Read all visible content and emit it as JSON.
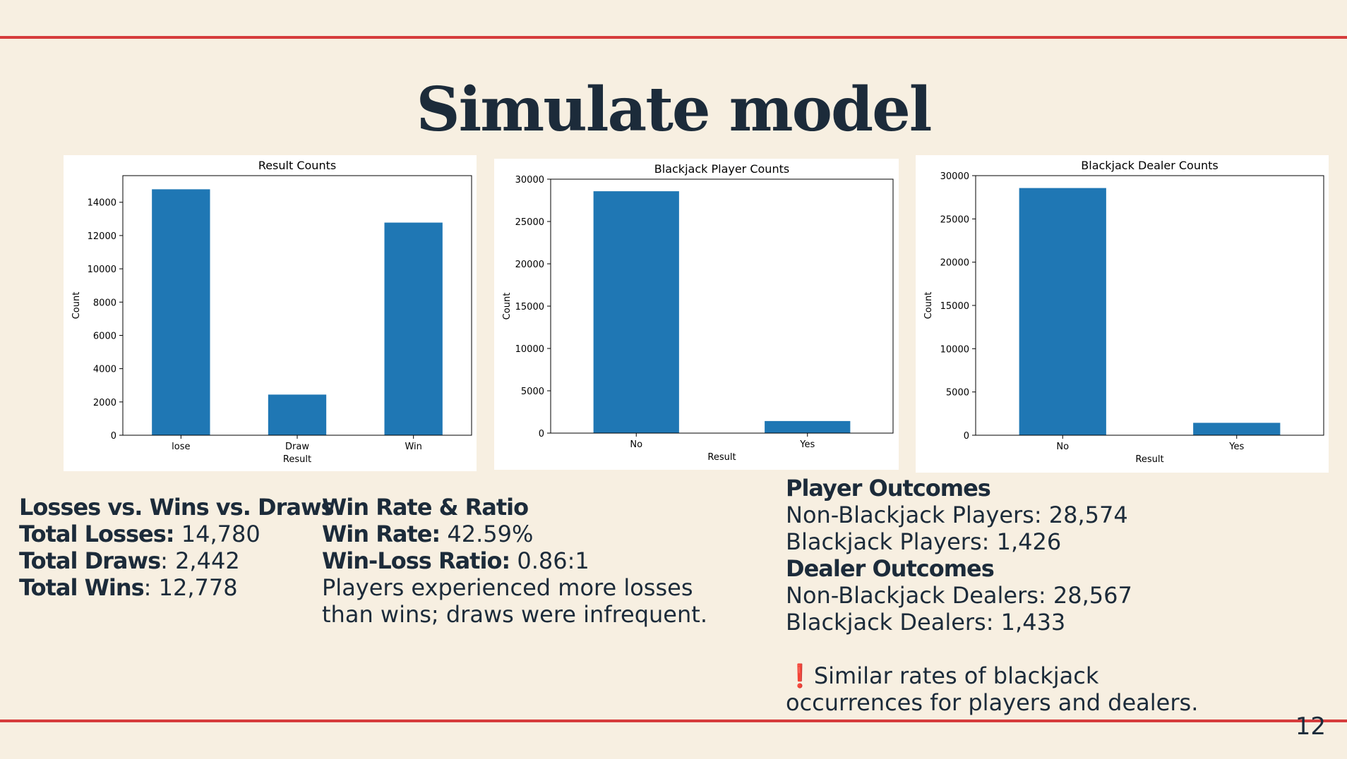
{
  "slide": {
    "title": "Simulate model",
    "page_number": "12",
    "accent_color": "#d63c3c",
    "bar_color": "#1f77b4"
  },
  "chart_data": [
    {
      "type": "bar",
      "title": "Result Counts",
      "xlabel": "Result",
      "ylabel": "Count",
      "categories": [
        "lose",
        "Draw",
        "Win"
      ],
      "values": [
        14780,
        2442,
        12778
      ],
      "ylim": [
        0,
        15600
      ],
      "yticks": [
        0,
        2000,
        4000,
        6000,
        8000,
        10000,
        12000,
        14000
      ],
      "grid": false
    },
    {
      "type": "bar",
      "title": "Blackjack Player Counts",
      "xlabel": "Result",
      "ylabel": "Count",
      "categories": [
        "No",
        "Yes"
      ],
      "values": [
        28574,
        1426
      ],
      "ylim": [
        0,
        30000
      ],
      "yticks": [
        0,
        5000,
        10000,
        15000,
        20000,
        25000,
        30000
      ],
      "grid": false
    },
    {
      "type": "bar",
      "title": "Blackjack Dealer Counts",
      "xlabel": "Result",
      "ylabel": "Count",
      "categories": [
        "No",
        "Yes"
      ],
      "values": [
        28567,
        1433
      ],
      "ylim": [
        0,
        30000
      ],
      "yticks": [
        0,
        5000,
        10000,
        15000,
        20000,
        25000,
        30000
      ],
      "grid": false
    }
  ],
  "summary_left": {
    "heading": "Losses vs. Wins vs. Draws",
    "losses_label": "Total Losses:",
    "losses_value": "14,780",
    "draws_label": "Total Draws",
    "draws_value": ": 2,442",
    "wins_label": "Total Wins",
    "wins_value": ": 12,778"
  },
  "summary_middle": {
    "heading": "Win Rate & Ratio",
    "rate_label": "Win Rate:",
    "rate_value": "42.59%",
    "ratio_label": "Win-Loss Ratio:",
    "ratio_value": "0.86:1",
    "note_line1": "Players experienced more losses",
    "note_line2": "than wins; draws were infrequent."
  },
  "summary_right": {
    "player_heading": "Player Outcomes",
    "player_line1": "Non-Blackjack Players: 28,574",
    "player_line2": "Blackjack Players: 1,426",
    "dealer_heading": "Dealer Outcomes",
    "dealer_line1": "Non-Blackjack Dealers: 28,567",
    "dealer_line2": "Blackjack Dealers: 1,433",
    "note_line1": "❗Similar rates of blackjack",
    "note_line2": "occurrences for players and dealers."
  }
}
